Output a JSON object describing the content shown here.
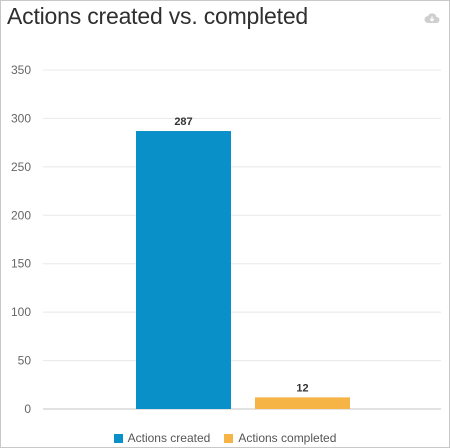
{
  "header": {
    "title": "Actions created vs. completed",
    "cloud_icon": "cloud-download-icon"
  },
  "colors": {
    "created": "#0a90c8",
    "completed": "#f5b445",
    "grid": "#e8e8e8",
    "axis": "#c6c6c6"
  },
  "chart_data": {
    "type": "bar",
    "title": "Actions created vs. completed",
    "xlabel": "",
    "ylabel": "",
    "ylim": [
      0,
      350
    ],
    "yticks": [
      0,
      50,
      100,
      150,
      200,
      250,
      300,
      350
    ],
    "series": [
      {
        "name": "Actions created",
        "values": [
          287
        ],
        "color": "#0a90c8"
      },
      {
        "name": "Actions completed",
        "values": [
          12
        ],
        "color": "#f5b445"
      }
    ],
    "data_labels": true,
    "grid": true,
    "legend": "bottom-center"
  }
}
